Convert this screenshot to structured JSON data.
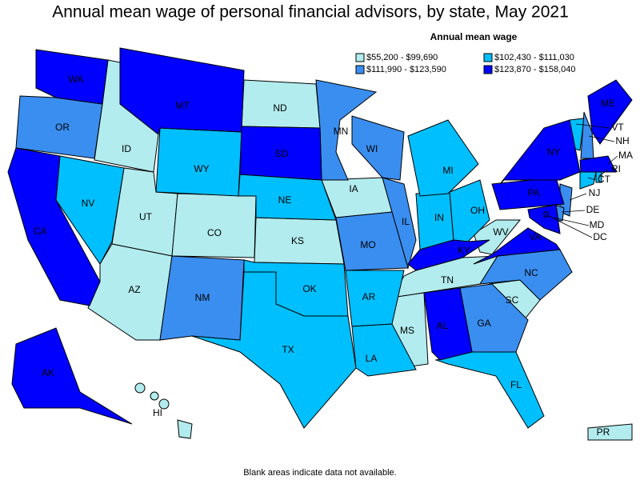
{
  "title": "Annual mean wage of personal financial advisors, by state, May 2021",
  "legend": {
    "title": "Annual mean wage",
    "items": [
      {
        "label": "$55,200 - $99,690",
        "color": "#b2ecee",
        "states": [
          "ID",
          "UT",
          "CO",
          "AZ",
          "ND",
          "IA",
          "KS",
          "MS",
          "TN",
          "SC",
          "WV",
          "HI",
          "PR"
        ]
      },
      {
        "label": "$102,430 - $111,030",
        "color": "#00bfff",
        "states": [
          "NV",
          "WY",
          "NE",
          "OK",
          "TX",
          "AR",
          "LA",
          "FL",
          "IN",
          "OH",
          "MI",
          "VT",
          "CT",
          "RI"
        ]
      },
      {
        "label": "$111,990 - $123,590",
        "color": "#3a8ef0",
        "states": [
          "OR",
          "NM",
          "MN",
          "WI",
          "IL",
          "MO",
          "GA",
          "NC",
          "NJ",
          "NH",
          "DE"
        ]
      },
      {
        "label": "$123,870 - $158,040",
        "color": "#0000ff",
        "states": [
          "WA",
          "CA",
          "MT",
          "SD",
          "AK",
          "KY",
          "AL",
          "VA",
          "PA",
          "NY",
          "MA",
          "ME",
          "MD",
          "DC"
        ]
      }
    ]
  },
  "footnote": "Blank areas indicate data not available."
}
